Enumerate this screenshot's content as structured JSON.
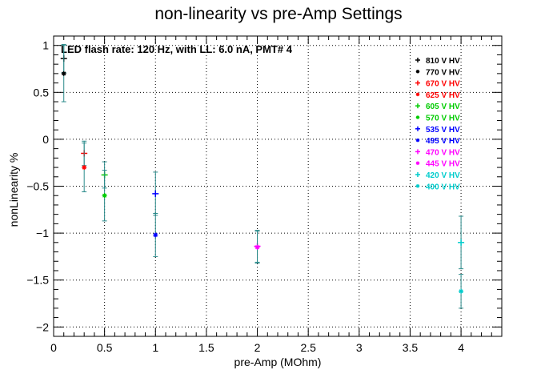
{
  "chart_data": {
    "type": "scatter",
    "title": "non-linearity vs pre-Amp Settings",
    "xlabel": "pre-Amp (MOhm)",
    "ylabel": "nonLinearity %",
    "annotation": "LED flash rate: 120 Hz, with LL: 6.0 nA, PMT# 4",
    "xlim": [
      0,
      4.4
    ],
    "ylim": [
      -2.1,
      1.1
    ],
    "x_ticks": [
      "0",
      "0.5",
      "1",
      "1.5",
      "2",
      "2.5",
      "3",
      "3.5",
      "4"
    ],
    "y_ticks": [
      "1",
      "0.5",
      "0",
      "−0.5",
      "−1",
      "−1.5",
      "−2"
    ],
    "grid": true,
    "legend_position": "top-right",
    "series": [
      {
        "name": "810 V HV",
        "color": "#000000",
        "marker": "plus",
        "points": [
          {
            "x": 0.1,
            "y": 0.86,
            "err": 0.15
          }
        ]
      },
      {
        "name": "770 V HV",
        "color": "#000000",
        "marker": "star",
        "points": [
          {
            "x": 0.1,
            "y": 0.7,
            "err": 0.3
          }
        ]
      },
      {
        "name": "670 V HV",
        "color": "#ff0000",
        "marker": "plus",
        "points": [
          {
            "x": 0.3,
            "y": -0.15,
            "err": 0.13
          }
        ]
      },
      {
        "name": "625 V HV",
        "color": "#ff0000",
        "marker": "star",
        "points": [
          {
            "x": 0.3,
            "y": -0.3,
            "err": 0.26
          }
        ]
      },
      {
        "name": "605 V HV",
        "color": "#00cc00",
        "marker": "plus",
        "points": [
          {
            "x": 0.5,
            "y": -0.38,
            "err": 0.14
          }
        ]
      },
      {
        "name": "570 V HV",
        "color": "#00cc00",
        "marker": "star",
        "points": [
          {
            "x": 0.5,
            "y": -0.6,
            "err": 0.27
          }
        ]
      },
      {
        "name": "535 V HV",
        "color": "#0000ff",
        "marker": "plus",
        "points": [
          {
            "x": 1.0,
            "y": -0.58,
            "err": 0.23
          }
        ]
      },
      {
        "name": "495 V HV",
        "color": "#0000ff",
        "marker": "star",
        "points": [
          {
            "x": 1.0,
            "y": -1.02,
            "err": 0.23
          }
        ]
      },
      {
        "name": "470 V HV",
        "color": "#ff00ff",
        "marker": "plus",
        "points": [
          {
            "x": 2.0,
            "y": -1.14,
            "err": 0.17
          }
        ]
      },
      {
        "name": "445 V HV",
        "color": "#ff00ff",
        "marker": "star",
        "points": [
          {
            "x": 2.0,
            "y": -1.15,
            "err": 0.17
          }
        ]
      },
      {
        "name": "420 V HV",
        "color": "#00cccc",
        "marker": "plus",
        "points": [
          {
            "x": 4.0,
            "y": -1.1,
            "err": 0.28
          }
        ]
      },
      {
        "name": "400 V HV",
        "color": "#00cccc",
        "marker": "star",
        "points": [
          {
            "x": 4.0,
            "y": -1.62,
            "err": 0.18
          }
        ]
      }
    ]
  }
}
